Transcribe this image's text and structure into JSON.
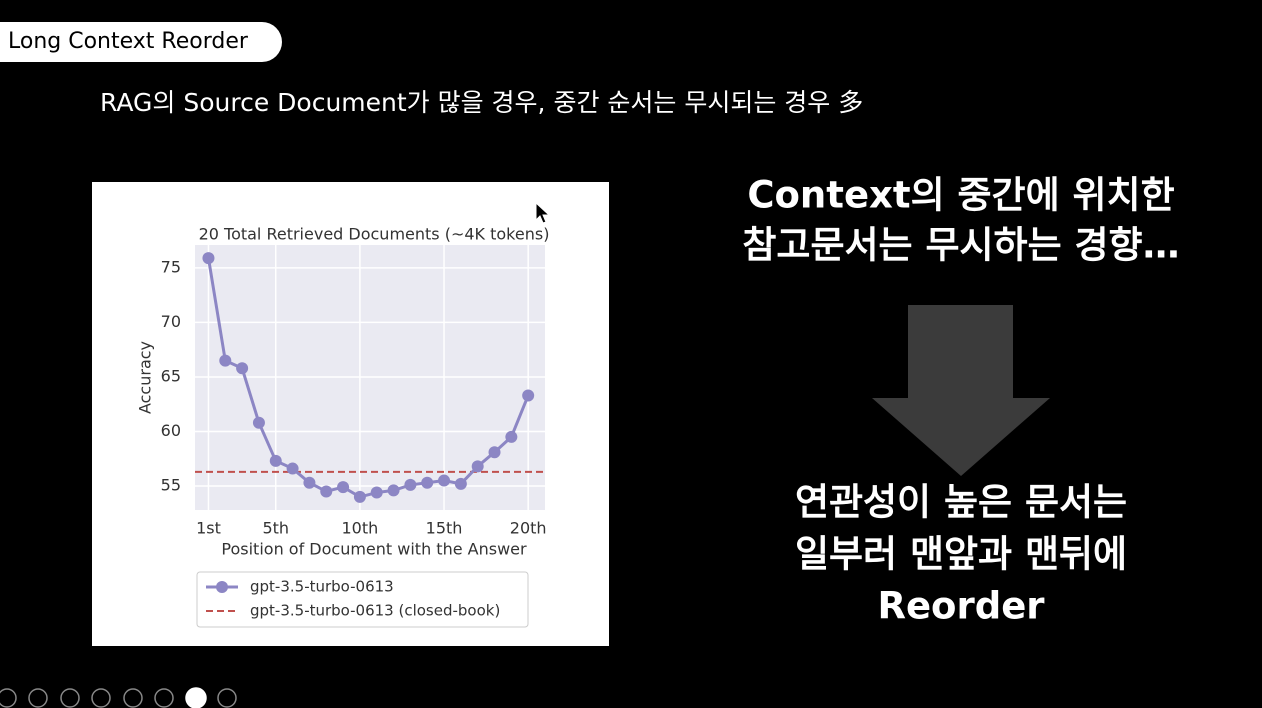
{
  "header": {
    "title": "Long Context Reorder"
  },
  "subtitle": "RAG의 Source Document가 많을 경우, 중간 순서는 무시되는 경우 多",
  "right_top": [
    "Context의 중간에 위치한",
    "참고문서는 무시하는 경향…"
  ],
  "right_bottom": [
    "연관성이 높은 문서는",
    "일부러 맨앞과 맨뒤에",
    "Reorder"
  ],
  "chart_data": {
    "type": "line",
    "title": "20 Total Retrieved Documents (~4K tokens)",
    "xlabel": "Position of Document with the Answer",
    "ylabel": "Accuracy",
    "x": [
      1,
      2,
      3,
      4,
      5,
      6,
      7,
      8,
      9,
      10,
      11,
      12,
      13,
      14,
      15,
      16,
      17,
      18,
      19,
      20
    ],
    "series": [
      {
        "name": "gpt-3.5-turbo-0613",
        "color": "#8c86c4",
        "values": [
          75.9,
          66.5,
          65.8,
          60.8,
          57.3,
          56.6,
          55.3,
          54.5,
          54.9,
          54.0,
          54.4,
          54.6,
          55.1,
          55.3,
          55.5,
          55.2,
          56.8,
          58.1,
          59.5,
          63.3
        ]
      }
    ],
    "hlines": [
      {
        "name": "gpt-3.5-turbo-0613 (closed-book)",
        "color": "#c0504d",
        "value": 56.3,
        "linestyle": "dashed"
      }
    ],
    "xlim": [
      0.2,
      21
    ],
    "ylim": [
      52.8,
      77.1
    ],
    "xticks": [
      {
        "value": 1,
        "label": "1st"
      },
      {
        "value": 5,
        "label": "5th"
      },
      {
        "value": 10,
        "label": "10th"
      },
      {
        "value": 15,
        "label": "15th"
      },
      {
        "value": 20,
        "label": "20th"
      }
    ],
    "yticks": [
      55,
      60,
      65,
      70,
      75
    ],
    "grid": true,
    "legend": "bottom"
  }
}
